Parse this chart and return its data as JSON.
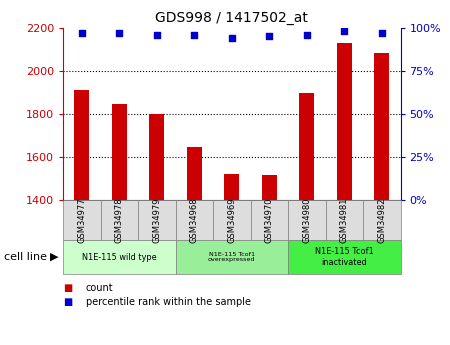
{
  "title": "GDS998 / 1417502_at",
  "samples": [
    "GSM34977",
    "GSM34978",
    "GSM34979",
    "GSM34968",
    "GSM34969",
    "GSM34970",
    "GSM34980",
    "GSM34981",
    "GSM34982"
  ],
  "counts": [
    1910,
    1845,
    1800,
    1645,
    1520,
    1515,
    1895,
    2130,
    2080
  ],
  "percentiles": [
    97,
    97,
    96,
    96,
    94,
    95,
    96,
    98,
    97
  ],
  "ylim_left": [
    1400,
    2200
  ],
  "ylim_right": [
    0,
    100
  ],
  "yticks_left": [
    1400,
    1600,
    1800,
    2000,
    2200
  ],
  "yticks_right": [
    0,
    25,
    50,
    75,
    100
  ],
  "bar_color": "#cc0000",
  "dot_color": "#0000cc",
  "cell_line_groups": [
    {
      "label": "N1E-115 wild type",
      "start": 0,
      "end": 3,
      "color": "#ccffcc",
      "fontsize": 9
    },
    {
      "label": "N1E-115 Tcof1\noverexpressed",
      "start": 3,
      "end": 6,
      "color": "#99ee99",
      "fontsize": 7
    },
    {
      "label": "N1E-115 Tcof1\ninactivated",
      "start": 6,
      "end": 9,
      "color": "#44ee44",
      "fontsize": 9
    }
  ],
  "legend_items": [
    {
      "label": "count",
      "color": "#cc0000"
    },
    {
      "label": "percentile rank within the sample",
      "color": "#0000cc"
    }
  ],
  "cell_line_label": "cell line",
  "background_color": "#ffffff",
  "tick_label_color_left": "#cc0000",
  "tick_label_color_right": "#0000cc",
  "sample_box_color": "#dddddd",
  "grid_yticks": [
    1600,
    1800,
    2000
  ]
}
